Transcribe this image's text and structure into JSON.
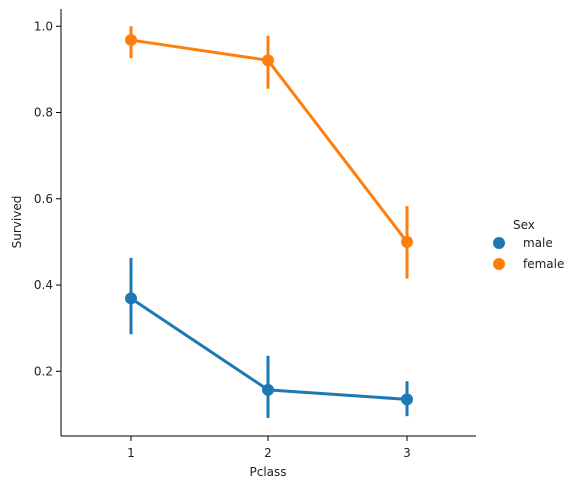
{
  "chart_data": {
    "type": "line",
    "subtype": "pointplot",
    "x": [
      1,
      2,
      3
    ],
    "xlabel": "Pclass",
    "ylabel": "Survived",
    "ylim": [
      0.05,
      1.04
    ],
    "yticks": [
      0.2,
      0.4,
      0.6,
      0.8,
      1.0
    ],
    "yticklabels": [
      "0.2",
      "0.4",
      "0.6",
      "0.8",
      "1.0"
    ],
    "xticklabels": [
      "1",
      "2",
      "3"
    ],
    "grid": false,
    "legend": {
      "title": "Sex",
      "placement": "right",
      "entries": [
        "male",
        "female"
      ]
    },
    "series": [
      {
        "name": "male",
        "color": "#1f77b4",
        "values": [
          0.369,
          0.157,
          0.135
        ],
        "ci_low": [
          0.286,
          0.092,
          0.096
        ],
        "ci_high": [
          0.463,
          0.236,
          0.177
        ]
      },
      {
        "name": "female",
        "color": "#ff7f0e",
        "values": [
          0.968,
          0.921,
          0.5
        ],
        "ci_low": [
          0.926,
          0.855,
          0.415
        ],
        "ci_high": [
          1.0,
          0.978,
          0.583
        ]
      }
    ]
  }
}
